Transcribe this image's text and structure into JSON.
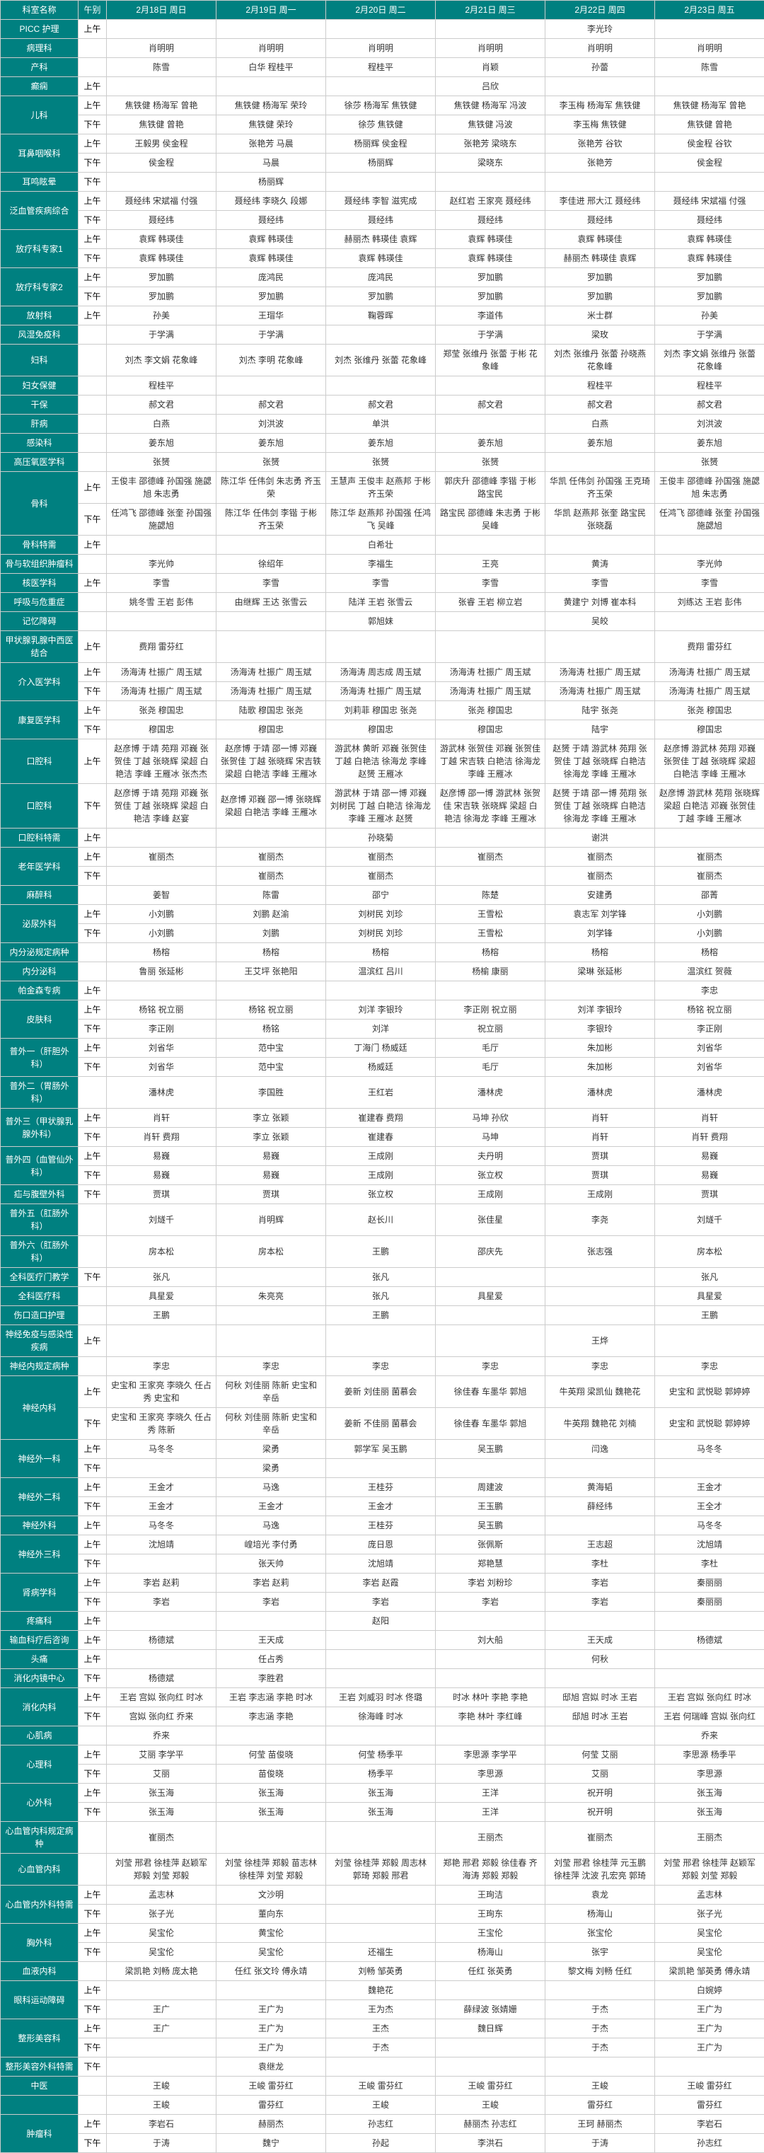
{
  "colors": {
    "header_bg": "#008080",
    "header_fg": "#ffffff",
    "border": "#cccccc",
    "text": "#333333",
    "bg": "#ffffff"
  },
  "font": {
    "family": "Microsoft YaHei",
    "size_pt": 9
  },
  "headers": {
    "dept": "科室名称",
    "shift": "午别",
    "days": [
      "2月18日 周日",
      "2月19日 周一",
      "2月20日 周二",
      "2月21日 周三",
      "2月22日 周四",
      "2月23日 周五"
    ]
  },
  "shifts": {
    "am": "上午",
    "pm": "下午"
  },
  "rows": [
    {
      "dept": "PICC 护理",
      "am": [
        "",
        "",
        "",
        "",
        "李光玲",
        ""
      ]
    },
    {
      "dept": "病理科",
      "flat": [
        "肖明明",
        "肖明明",
        "肖明明",
        "肖明明",
        "肖明明",
        "肖明明"
      ]
    },
    {
      "dept": "产科",
      "flat": [
        "陈雪",
        "白华 程桂平",
        "程桂平",
        "肖颖",
        "孙蕾",
        "陈雪"
      ]
    },
    {
      "dept": "癫痫",
      "am": [
        "",
        "",
        "",
        "吕欣",
        "",
        ""
      ]
    },
    {
      "dept": "儿科",
      "am": [
        "焦铁健 杨海军 曾艳",
        "焦铁健 杨海军 荣玲",
        "徐莎 杨海军 焦铁健",
        "焦铁健 杨海军 冯波",
        "李玉梅 杨海军 焦铁健",
        "焦铁健 杨海军 曾艳"
      ],
      "pm": [
        "焦铁健 曾艳",
        "焦铁健 荣玲",
        "徐莎 焦铁健",
        "焦铁健 冯波",
        "李玉梅 焦铁健",
        "焦铁健 曾艳"
      ]
    },
    {
      "dept": "耳鼻咽喉科",
      "am": [
        "王毅男 侯金程",
        "张艳芳 马晨",
        "杨丽辉 侯金程",
        "张艳芳 梁晓东",
        "张艳芳 谷钦",
        "侯金程 谷钦"
      ],
      "pm": [
        "侯金程",
        "马晨",
        "杨丽辉",
        "梁晓东",
        "张艳芳",
        "侯金程"
      ]
    },
    {
      "dept": "耳鸣眩晕",
      "pm": [
        "",
        "杨丽辉",
        "",
        "",
        "",
        ""
      ]
    },
    {
      "dept": "泛血管疾病综合",
      "am": [
        "聂经纬 宋斌福 付强",
        "聂经纬 李晓久 段娜",
        "聂经纬 李智 滋宪成",
        "赵红岩 王家亮 聂经纬",
        "李佳进 邢大江 聂经纬",
        "聂经纬 宋斌福 付强"
      ],
      "pm": [
        "聂经纬",
        "聂经纬",
        "聂经纬",
        "聂经纬",
        "聂经纬",
        "聂经纬"
      ]
    },
    {
      "dept": "放疗科专家1",
      "am": [
        "袁辉 韩瑛佳",
        "袁辉 韩瑛佳",
        "赫丽杰 韩瑛佳 袁辉",
        "袁辉 韩瑛佳",
        "袁辉 韩瑛佳",
        "袁辉 韩瑛佳"
      ],
      "pm": [
        "袁辉 韩瑛佳",
        "袁辉 韩瑛佳",
        "袁辉 韩瑛佳",
        "袁辉 韩瑛佳",
        "赫丽杰 韩瑛佳 袁辉",
        "袁辉 韩瑛佳"
      ]
    },
    {
      "dept": "放疗科专家2",
      "am": [
        "罗加鹏",
        "庞鸿民",
        "庞鸿民",
        "罗加鹏",
        "罗加鹏",
        "罗加鹏"
      ],
      "pm": [
        "罗加鹏",
        "罗加鹏",
        "罗加鹏",
        "罗加鹏",
        "罗加鹏",
        "罗加鹏"
      ]
    },
    {
      "dept": "放射科",
      "am": [
        "孙美",
        "王瑁华",
        "鞠蓉晖",
        "李道伟",
        "米士群",
        "孙美"
      ]
    },
    {
      "dept": "风湿免疫科",
      "flat": [
        "于学满",
        "于学满",
        "",
        "于学满",
        "梁玫",
        "于学满"
      ]
    },
    {
      "dept": "妇科",
      "flat": [
        "刘杰 李文娟 花象峰",
        "刘杰 李明 花象峰",
        "刘杰 张维丹 张蕾 花象峰",
        "郑莹 张维丹 张蕾 于彬 花象峰",
        "刘杰 张维丹 张蕾 孙晓燕 花象峰",
        "刘杰 李文娟 张维丹 张蕾 花象峰"
      ]
    },
    {
      "dept": "妇女保健",
      "flat": [
        "程桂平",
        "",
        "",
        "",
        "程桂平",
        "程桂平"
      ]
    },
    {
      "dept": "干保",
      "flat": [
        "郝文君",
        "郝文君",
        "郝文君",
        "郝文君",
        "郝文君",
        "郝文君"
      ]
    },
    {
      "dept": "肝病",
      "flat": [
        "白燕",
        "刘洪波",
        "单洪",
        "",
        "白燕",
        "刘洪波"
      ]
    },
    {
      "dept": "感染科",
      "flat": [
        "姜东旭",
        "姜东旭",
        "姜东旭",
        "姜东旭",
        "姜东旭",
        "姜东旭"
      ]
    },
    {
      "dept": "高压氧医学科",
      "flat": [
        "张赟",
        "张赟",
        "张赟",
        "张赟",
        "",
        "张赟"
      ]
    },
    {
      "dept": "骨科",
      "am": [
        "王俊丰 邵德峰 孙国强 施勰旭 朱志勇",
        "陈江华 任伟剑 朱志勇 齐玉荣",
        "王慧声 王俊丰 赵燕邦 于彬 齐玉荣",
        "郭庆升 邵德峰 李锴 于彬 路宝民",
        "华凯 任伟剑 孙国强 王克琦 齐玉荣",
        "王俊丰 邵德峰 孙国强 施勰旭 朱志勇"
      ],
      "pm": [
        "任鸿飞 邵德峰 张奎 孙国强 施勰旭",
        "陈江华 任伟剑 李锴 于彬 齐玉荣",
        "陈江华 赵燕邦 孙国强 任鸿飞 吴峰",
        "路宝民 邵德峰 朱志勇 于彬 吴峰",
        "华凯 赵燕邦 张奎 路宝民 张晓磊",
        "任鸿飞 邵德峰 张奎 孙国强 施勰旭"
      ]
    },
    {
      "dept": "骨科特需",
      "am": [
        "",
        "",
        "白希壮",
        "",
        "",
        ""
      ]
    },
    {
      "dept": "骨与软组织肿瘤科",
      "flat": [
        "李光帅",
        "徐绍年",
        "李福生",
        "王亮",
        "黄涛",
        "李光帅"
      ]
    },
    {
      "dept": "核医学科",
      "am": [
        "李雪",
        "李雪",
        "李雪",
        "李雪",
        "李雪",
        "李雪"
      ]
    },
    {
      "dept": "呼吸与危重症",
      "flat": [
        "姚冬雪 王岩 彭伟",
        "由继辉 王达 张雪云",
        "陆洋 王岩 张雪云",
        "张睿 王岩 柳立岩",
        "黄建宁 刘博 崔本科",
        "刘练达 王岩 彭伟"
      ]
    },
    {
      "dept": "记忆障碍",
      "flat": [
        "",
        "",
        "郭旭妹",
        "",
        "吴皎",
        ""
      ]
    },
    {
      "dept": "甲状腺乳腺中西医结合",
      "am": [
        "费翔 雷芬红",
        "",
        "",
        "",
        "",
        "费翔 雷芬红"
      ]
    },
    {
      "dept": "介入医学科",
      "am": [
        "汤海涛 杜振广 周玉斌",
        "汤海涛 杜振广 周玉斌",
        "汤海涛 周志成 周玉斌",
        "汤海涛 杜振广 周玉斌",
        "汤海涛 杜振广 周玉斌",
        "汤海涛 杜振广 周玉斌"
      ],
      "pm": [
        "汤海涛 杜振广 周玉斌",
        "汤海涛 杜振广 周玉斌",
        "汤海涛 杜振广 周玉斌",
        "汤海涛 杜振广 周玉斌",
        "汤海涛 杜振广 周玉斌",
        "汤海涛 杜振广 周玉斌"
      ]
    },
    {
      "dept": "康复医学科",
      "am": [
        "张尧 穆国忠",
        "陆歌 穆国忠 张尧",
        "刘莉菲 穆国忠 张尧",
        "张尧 穆国忠",
        "陆宇 张尧",
        "张尧 穆国忠"
      ],
      "pm": [
        "穆国忠",
        "穆国忠",
        "穆国忠",
        "穆国忠",
        "陆宇",
        "穆国忠"
      ]
    },
    {
      "dept": "口腔科",
      "am": [
        "赵彦博 于靖 苑翔 邓巍 张贺佳 丁越 张晓辉 梁超 白艳洁 李峰 王雁冰 张杰杰",
        "赵彦博 于靖 邵一博 邓巍 张贺佳 丁越 张晓辉 宋吉轶 梁超 白艳洁 李峰 王雁冰",
        "游武林 黄昕 邓巍 张贺佳 丁越 白艳洁 徐海龙 李峰 赵赟 王雁冰",
        "游武林 张贺佳 邓巍 张贺佳 丁越 宋吉轶 白艳洁 徐海龙 李峰 王雁冰",
        "赵赟 于靖 游武林 苑翔 张贺佳 丁越 张晓辉 白艳洁 徐海龙 李峰 王雁冰",
        "赵彦博 游武林 苑翔 邓巍 张贺佳 丁越 张晓辉 梁超 白艳洁 李峰 王雁冰"
      ]
    },
    {
      "dept": "口腔科",
      "pm": [
        "赵彦博 于靖 苑翔 邓巍 张贺佳 丁越 张晓辉 梁超 白艳洁 李峰 赵宴",
        "赵彦博 邓巍 邵一博 张晓辉 梁超 白艳洁 李峰 王雁冰",
        "游武林 于靖 邵一博 邓巍 刘树民 丁越 白艳洁 徐海龙 李峰 王雁冰 赵赟",
        "赵彦博 邵一博 游武林 张贺佳 宋吉轶 张晓辉 梁超 白艳洁 徐海龙 李峰 王雁冰",
        "赵赟 于靖 邵一博 苑翔 张贺佳 丁越 张晓辉 白艳洁 徐海龙 李峰 王雁冰",
        "赵彦博 游武林 苑翔 张晓辉 梁超 白艳洁 邓巍 张贺佳 丁越 李峰 王雁冰"
      ]
    },
    {
      "dept": "口腔科特需",
      "am": [
        "",
        "",
        "孙晓菊",
        "",
        "谢洪",
        ""
      ]
    },
    {
      "dept": "老年医学科",
      "am": [
        "崔丽杰",
        "崔丽杰",
        "崔丽杰",
        "崔丽杰",
        "崔丽杰",
        "崔丽杰"
      ],
      "pm": [
        "",
        "崔丽杰",
        "崔丽杰",
        "",
        "崔丽杰",
        "崔丽杰"
      ]
    },
    {
      "dept": "麻醉科",
      "flat": [
        "姜智",
        "陈雷",
        "邵宁",
        "陈楚",
        "安建勇",
        "邵菁"
      ]
    },
    {
      "dept": "泌尿外科",
      "am": [
        "小刘鹏",
        "刘鹏 赵渝",
        "刘树民 刘珍",
        "王雪松",
        "袁志军 刘学锋",
        "小刘鹏"
      ],
      "pm": [
        "小刘鹏",
        "刘鹏",
        "刘树民 刘珍",
        "王雪松",
        "刘学锋",
        "小刘鹏"
      ]
    },
    {
      "dept": "内分泌规定病种",
      "flat": [
        "杨榕",
        "杨榕",
        "杨榕",
        "杨榕",
        "杨榕",
        "杨榕"
      ]
    },
    {
      "dept": "内分泌科",
      "flat": [
        "鲁丽 张延彬",
        "王艾坪 张艳阳",
        "温滨红 吕川",
        "杨榆 康丽",
        "梁琳 张延彬",
        "温滨红 贺薇"
      ]
    },
    {
      "dept": "帕金森专病",
      "am": [
        "",
        "",
        "",
        "",
        "",
        "李忠"
      ]
    },
    {
      "dept": "皮肤科",
      "am": [
        "杨铭 祝立丽",
        "杨铭 祝立丽",
        "刘洋 李银玲",
        "李正刚 祝立丽",
        "刘洋 李银玲",
        "杨铭 祝立丽"
      ],
      "pm": [
        "李正刚",
        "杨铭",
        "刘洋",
        "祝立丽",
        "李银玲",
        "李正刚"
      ]
    },
    {
      "dept": "普外一（肝胆外科）",
      "am": [
        "刘省华",
        "范中宝",
        "丁海门 杨威廷",
        "毛厅",
        "朱加彬",
        "刘省华"
      ],
      "pm": [
        "刘省华",
        "范中宝",
        "杨威廷",
        "毛厅",
        "朱加彬",
        "刘省华"
      ]
    },
    {
      "dept": "普外二（胃肠外科）",
      "flat": [
        "潘林虎",
        "李国胜",
        "王红岩",
        "潘林虎",
        "潘林虎",
        "潘林虎"
      ]
    },
    {
      "dept": "普外三（甲状腺乳腺外科）",
      "am": [
        "肖轩",
        "李立 张颖",
        "崔建春 费翔",
        "马坤 孙欣",
        "肖轩",
        "肖轩"
      ],
      "pm": [
        "肖轩 费翔",
        "李立 张颖",
        "崔建春",
        "马坤",
        "肖轩",
        "肖轩 费翔"
      ]
    },
    {
      "dept": "普外四（血管仙外科）",
      "am": [
        "易巍",
        "易巍",
        "王成刚",
        "夫丹明",
        "贾琪",
        "易巍"
      ],
      "pm": [
        "易巍",
        "易巍",
        "王成刚",
        "张立权",
        "贾琪",
        "易巍"
      ]
    },
    {
      "dept": "疝与腹壁外科",
      "pm": [
        "贾琪",
        "贾琪",
        "张立权",
        "王成刚",
        "王成刚",
        "贾琪"
      ]
    },
    {
      "dept": "普外五（肛肠外科）",
      "flat": [
        "刘燧千",
        "肖明辉",
        "赵长川",
        "张佳星",
        "李尧",
        "刘燧千"
      ]
    },
    {
      "dept": "普外六（肛肠外科）",
      "flat": [
        "房本松",
        "房本松",
        "王鹏",
        "邵庆先",
        "张志强",
        "房本松"
      ]
    },
    {
      "dept": "全科医疗门教学",
      "pm": [
        "张凡",
        "",
        "张凡",
        "",
        "",
        "张凡"
      ]
    },
    {
      "dept": "全科医疗科",
      "flat": [
        "具星爱",
        "朱亮亮",
        "张凡",
        "具星爱",
        "",
        "具星爱"
      ]
    },
    {
      "dept": "伤口造口护理",
      "flat": [
        "王鹏",
        "",
        "王鹏",
        "",
        "",
        "王鹏"
      ]
    },
    {
      "dept": "神经免疫与感染性疾病",
      "am": [
        "",
        "",
        "",
        "",
        "王烨",
        ""
      ]
    },
    {
      "dept": "神经内规定病种",
      "flat": [
        "李忠",
        "李忠",
        "李忠",
        "李忠",
        "李忠",
        "李忠"
      ]
    },
    {
      "dept": "神经内科",
      "am": [
        "史宝和 王家亮 李晓久 任占秀 史宝和",
        "何秋 刘佳丽 陈新 史宝和 辛岳",
        "姜新 刘佳丽 菌慕会",
        "徐佳春 车墨华 郭旭",
        "牛英翔 梁凯仙 魏艳花",
        "史宝和 武悦聪 郭婷婷"
      ],
      "pm": [
        "史宝和 王家亮 李晓久 任占秀 陈新",
        "何秋 刘佳丽 陈新 史宝和 辛岳",
        "姜新 不佳丽 菌慕会",
        "徐佳春 车墨华 郭旭",
        "牛英翔 魏艳花 刘楠",
        "史宝和 武悦聪 郭婷婷"
      ]
    },
    {
      "dept": "神经外一科",
      "am": [
        "马冬冬",
        "梁勇",
        "郭学军 吴玉鹏",
        "吴玉鹏",
        "闫逸",
        "马冬冬"
      ],
      "pm": [
        "",
        "梁勇",
        "",
        "",
        "",
        ""
      ]
    },
    {
      "dept": "神经外二科",
      "am": [
        "王金才",
        "马逸",
        "王桂芬",
        "周建波",
        "黄海韬",
        "王金才"
      ],
      "pm": [
        "王金才",
        "王金才",
        "王金才",
        "王玉鹏",
        "薛经纬",
        "王全才"
      ]
    },
    {
      "dept": "神经外科",
      "am": [
        "马冬冬",
        "马逸",
        "王桂芬",
        "吴玉鹏",
        "",
        "马冬冬"
      ]
    },
    {
      "dept": "神经外三科",
      "am": [
        "沈旭靖",
        "崲培光 李付勇",
        "庞日恩",
        "张佩斯",
        "王志超",
        "沈旭靖"
      ],
      "pm": [
        "",
        "张天帅",
        "沈旭靖",
        "郑艳慧",
        "李杜",
        "李杜"
      ]
    },
    {
      "dept": "肾病学科",
      "am": [
        "李岩 赵莉",
        "李岩 赵莉",
        "李岩 赵霞",
        "李岩 刘粉珍",
        "李岩",
        "秦丽丽"
      ],
      "pm": [
        "李岩",
        "李岩",
        "李岩",
        "李岩",
        "李岩",
        "秦丽丽"
      ]
    },
    {
      "dept": "疼痛科",
      "am": [
        "",
        "",
        "赵阳",
        "",
        "",
        ""
      ]
    },
    {
      "dept": "输血科疗后咨询",
      "am": [
        "杨德斌",
        "王天成",
        "",
        "刘大船",
        "王天成",
        "杨德斌"
      ]
    },
    {
      "dept": "头痛",
      "am": [
        "",
        "任占秀",
        "",
        "",
        "何秋",
        ""
      ]
    },
    {
      "dept": "消化内镜中心",
      "pm": [
        "杨德斌",
        "李胜君",
        "",
        "",
        "",
        ""
      ]
    },
    {
      "dept": "消化内科",
      "am": [
        "王岩 宫姒 张向红 时冰",
        "王岩 李志涵 李艳 时冰",
        "王岩 刘威羽 时冰 佟璐",
        "时冰 林叶 李艳 李艳",
        "邸旭 宫姒 时冰 王岩",
        "王岩 宫姒 张向红 时冰"
      ],
      "pm": [
        "宫姒 张向红 乔来",
        "李志涵 李艳",
        "徐海峰 时冰",
        "李艳 林叶 李红峰",
        "邸旭 时冰 王岩",
        "王岩 何瑞峰 宫姒 张向红"
      ]
    },
    {
      "dept": "心肌病",
      "flat": [
        "乔来",
        "",
        "",
        "",
        "",
        "乔来"
      ]
    },
    {
      "dept": "心理科",
      "am": [
        "艾丽 李学平",
        "何莹 苗俊晓",
        "何莹 杨季平",
        "李思源 李学平",
        "何莹 艾丽",
        "李思源 杨季平"
      ],
      "pm": [
        "艾丽",
        "苗俊晓",
        "杨季平",
        "李思源",
        "艾丽",
        "李思源"
      ]
    },
    {
      "dept": "心外科",
      "am": [
        "张玉海",
        "张玉海",
        "张玉海",
        "王洋",
        "祝开明",
        "张玉海"
      ],
      "pm": [
        "张玉海",
        "张玉海",
        "张玉海",
        "王洋",
        "祝开明",
        "张玉海"
      ]
    },
    {
      "dept": "心血管内科规定病种",
      "flat": [
        "崔丽杰",
        "",
        "",
        "王丽杰",
        "崔丽杰",
        "王丽杰"
      ]
    },
    {
      "dept": "心血管内科",
      "flat": [
        "刘莹 邢君 徐桂萍 赵颖军 郑毅 刘莹 郑毅",
        "刘莹 徐桂萍 郑毅 苗志林 徐桂萍 刘莹 郑毅",
        "刘莹 徐桂萍 郑毅 周志林 郭琦 郑毅 邢君",
        "郑艳 邢君 郑毅 徐佳春 齐海涛 郑毅 郑毅",
        "刘莹 邢君 徐桂萍 元玉鹏 徐桂萍 沈波 孔宏亮 郭琦",
        "刘莹 邢君 徐桂萍 赵颖军 郑毅 刘莹 郑毅"
      ]
    },
    {
      "dept": "心血管内外科特需",
      "am": [
        "孟志林",
        "文沙明",
        "",
        "王珣洁",
        "袁龙",
        "孟志林"
      ],
      "pm": [
        "张子光",
        "董向东",
        "",
        "王珣东",
        "杨海山",
        "张子光"
      ]
    },
    {
      "dept": "胸外科",
      "am": [
        "吴宝伦",
        "黄宝伦",
        "",
        "王宝伦",
        "张宝伦",
        "吴宝伦"
      ],
      "pm": [
        "吴宝伦",
        "吴宝伦",
        "还福生",
        "杨海山",
        "张宇",
        "吴宝伦"
      ]
    },
    {
      "dept": "血液内科",
      "flat": [
        "梁凯艳 刘畅 庞太艳",
        "任红 张文玲 傅永靖",
        "刘畅 邹英勇",
        "任红 张英勇",
        "黎文梅 刘畅 任红",
        "梁凯艳 邹英勇 傅永靖"
      ]
    },
    {
      "dept": "眼科运动障碍",
      "am": [
        "",
        "",
        "魏艳花",
        "",
        "",
        "白婉婷"
      ],
      "pm": [
        "王广",
        "王广为",
        "王为杰",
        "薛绿波 张婧姗",
        "于杰",
        "王广为"
      ]
    },
    {
      "dept": "整形美容科",
      "am": [
        "王广",
        "王广为",
        "王杰",
        "魏日辉",
        "于杰",
        "王广为"
      ],
      "pm": [
        "",
        "王广为",
        "于杰",
        "",
        "于杰",
        "王广为"
      ]
    },
    {
      "dept": "整形美容外科特需",
      "pm": [
        "",
        "袁继龙",
        "",
        "",
        "",
        ""
      ]
    },
    {
      "dept": "中医",
      "flat": [
        "王峻",
        "王峻 雷芬红",
        "王峻 雷芬红",
        "王峻 雷芬红",
        "王峻",
        "王峻 雷芬红"
      ]
    },
    {
      "dept": "",
      "flat": [
        "王峻",
        "雷芬红",
        "王峻",
        "王峻",
        "雷芬红",
        "雷芬红"
      ]
    },
    {
      "dept": "肿瘤科",
      "am": [
        "李岩石",
        "赫丽杰",
        "孙志红",
        "赫丽杰 孙志红",
        "王珂 赫丽杰",
        "李岩石"
      ],
      "pm": [
        "于涛",
        "魏宁",
        "孙起",
        "李洪石",
        "于涛",
        "孙志红"
      ]
    }
  ]
}
